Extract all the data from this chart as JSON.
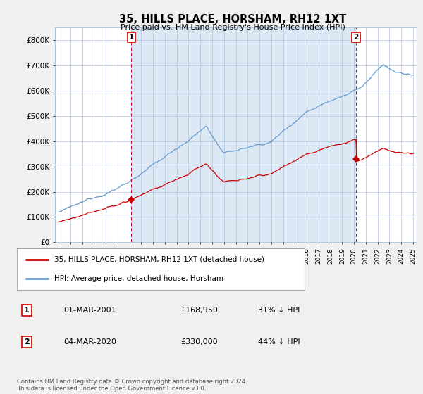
{
  "title": "35, HILLS PLACE, HORSHAM, RH12 1XT",
  "subtitle": "Price paid vs. HM Land Registry's House Price Index (HPI)",
  "background_color": "#f0f0f0",
  "plot_bg_color": "#dce9f5",
  "plot_left_bg": "#ffffff",
  "plot_right_bg": "#ffffff",
  "shade_color": "#dce9f5",
  "ylim": [
    0,
    850000
  ],
  "yticks": [
    0,
    100000,
    200000,
    300000,
    400000,
    500000,
    600000,
    700000,
    800000
  ],
  "ytick_labels": [
    "£0",
    "£100K",
    "£200K",
    "£300K",
    "£400K",
    "£500K",
    "£600K",
    "£700K",
    "£800K"
  ],
  "hpi_color": "#6699cc",
  "price_color": "#cc0000",
  "sale1_date": "01-MAR-2001",
  "sale1_price": "£168,950",
  "sale1_hpi": "31% ↓ HPI",
  "sale2_date": "04-MAR-2020",
  "sale2_price": "£330,000",
  "sale2_hpi": "44% ↓ HPI",
  "legend_line1": "35, HILLS PLACE, HORSHAM, RH12 1XT (detached house)",
  "legend_line2": "HPI: Average price, detached house, Horsham",
  "footer": "Contains HM Land Registry data © Crown copyright and database right 2024.\nThis data is licensed under the Open Government Licence v3.0.",
  "grid_color": "#b0c4de",
  "sale1_x": 2001.17,
  "sale1_y": 168950,
  "sale2_x": 2020.17,
  "sale2_y": 330000,
  "xlim_left": 1994.7,
  "xlim_right": 2025.3
}
